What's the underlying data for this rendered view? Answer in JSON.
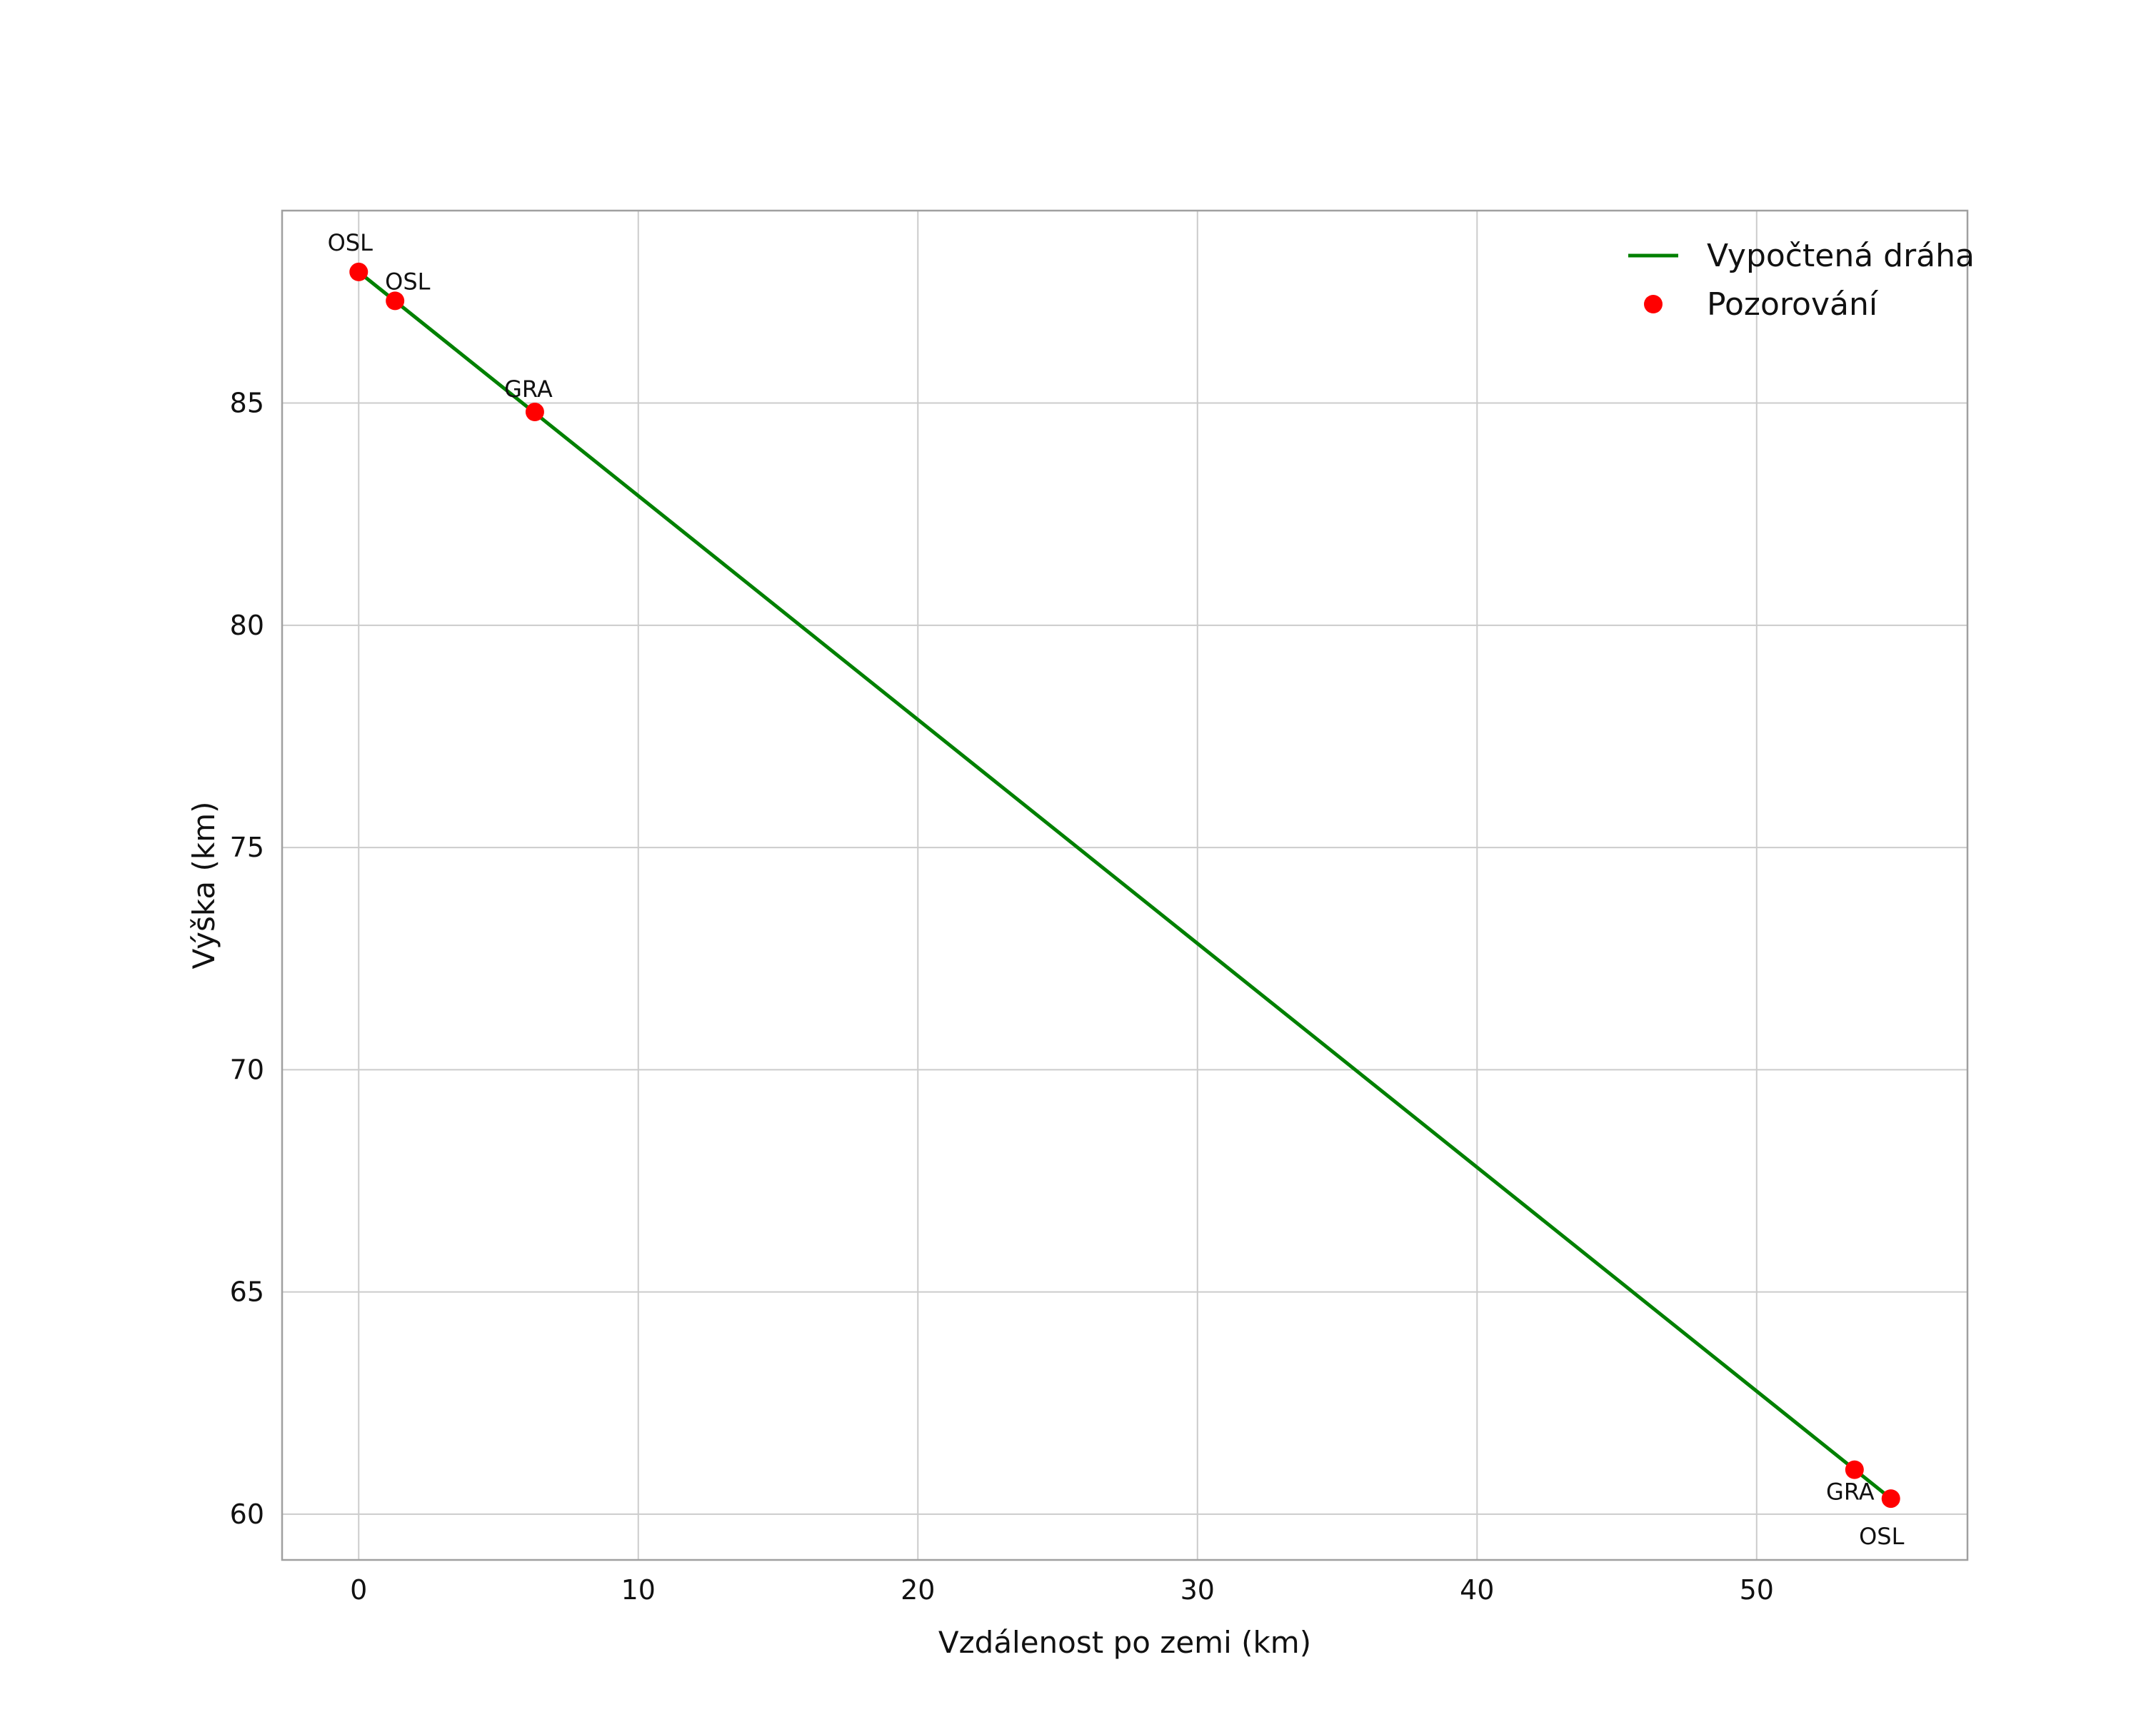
{
  "figure": {
    "background": "#ffffff",
    "plot_border_color": "#a0a0a0",
    "grid_color": "#cccccc",
    "text_color": "#111111"
  },
  "chart_data": {
    "type": "line",
    "title": "",
    "xlabel": "Vzdálenost po zemi (km)",
    "ylabel": "Výška (km)",
    "xlim": [
      -2.74,
      57.54
    ],
    "ylim": [
      58.97,
      89.33
    ],
    "xticks": [
      0,
      10,
      20,
      30,
      40,
      50
    ],
    "yticks": [
      60,
      65,
      70,
      75,
      80,
      85
    ],
    "grid": true,
    "legend": {
      "position": "upper-right",
      "entries": [
        {
          "label": "Vypočtená dráha",
          "type": "line",
          "color": "#008000"
        },
        {
          "label": "Pozorování",
          "type": "marker",
          "color": "#ff0000"
        }
      ]
    },
    "series": [
      {
        "name": "Vypočtená dráha",
        "type": "line",
        "color": "#008000",
        "width": 5,
        "x": [
          0.0,
          54.8
        ],
        "y": [
          87.95,
          60.35
        ]
      },
      {
        "name": "Pozorování",
        "type": "scatter",
        "color": "#ff0000",
        "marker_radius": 13,
        "points": [
          {
            "x": 0.0,
            "y": 87.95,
            "label": "OSL",
            "label_dx": -12,
            "label_dy": -30,
            "anchor": "middle"
          },
          {
            "x": 1.3,
            "y": 87.3,
            "label": "OSL",
            "label_dx": -14,
            "label_dy": -16,
            "anchor": "start"
          },
          {
            "x": 6.3,
            "y": 84.8,
            "label": "GRA",
            "label_dx": -9,
            "label_dy": -21,
            "anchor": "middle"
          },
          {
            "x": 53.5,
            "y": 61.0,
            "label": "GRA",
            "label_dx": -6,
            "label_dy": 42,
            "anchor": "middle"
          },
          {
            "x": 54.8,
            "y": 60.35,
            "label": "OSL",
            "label_dx": -13,
            "label_dy": 64,
            "anchor": "middle"
          }
        ]
      }
    ]
  }
}
